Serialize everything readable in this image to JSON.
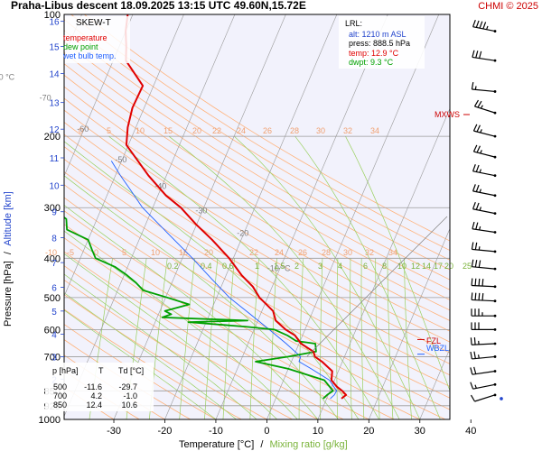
{
  "header": {
    "title": "Praha-Libus   descent   18.09.2025 13:15 UTC   49.60N,15.72E",
    "credit": "CHMI © 2025"
  },
  "legend": {
    "title": "SKEW-T",
    "items": [
      {
        "label": "temperature",
        "color": "#e00000"
      },
      {
        "label": "dew point",
        "color": "#00a000"
      },
      {
        "label": "wet bulb temp.",
        "color": "#2060ff"
      }
    ]
  },
  "lrl": {
    "title": "LRL:",
    "alt": "alt: 1210 m ASL",
    "press": "press: 888.5 hPa",
    "temp": "temp: 12.9 °C",
    "dwpt": "dwpt: 9.3 °C"
  },
  "markers": {
    "mxws": "MXWS",
    "fzl": "FZL",
    "wbzl": "WBZL"
  },
  "table": {
    "headers": [
      "p [hPa]",
      "T",
      "Td [°C]"
    ],
    "rows": [
      [
        "500",
        "-11.6",
        "-29.7"
      ],
      [
        "700",
        "4.2",
        "-1.0"
      ],
      [
        "850",
        "12.4",
        "10.6"
      ]
    ]
  },
  "axes": {
    "y_label_pressure": "Pressure [hPa]",
    "y_label_sep": "/",
    "y_label_altitude": "Altitude [km]",
    "x_label_temp": "Temperature [°C]",
    "x_label_sep": "/",
    "x_label_mix": "Mixing ratio [g/kg]"
  },
  "colors": {
    "temperature": "#e00000",
    "dewpoint": "#00a000",
    "wetbulb": "#2060ff",
    "isobar": "#9a9a9a",
    "isotherm": "#9a9a9a",
    "dry_adiabat": "#ffb27a",
    "moist_adiabat": "#9ad060",
    "mixing_ratio": "#9ad060",
    "altitude": "#2244cc",
    "credit": "#cc0000"
  },
  "chart_data": {
    "type": "skew-t",
    "pressure_ticks": [
      "100",
      "200",
      "300",
      "400",
      "500",
      "600",
      "700",
      "850",
      "925",
      "1000"
    ],
    "pressure_values": [
      100,
      200,
      300,
      400,
      500,
      600,
      700,
      850,
      925,
      1000
    ],
    "temp_ticks": [
      "-30",
      "-20",
      "-10",
      "0",
      "10",
      "20",
      "30",
      "40"
    ],
    "temp_values": [
      -30,
      -20,
      -10,
      0,
      10,
      20,
      30,
      40
    ],
    "altitude_ticks": [
      "16",
      "15",
      "14",
      "13",
      "12",
      "11",
      "10",
      "9",
      "8",
      "7",
      "6",
      "5",
      "4",
      "3",
      "2"
    ],
    "altitude_values_km": [
      16,
      15,
      14,
      13,
      12,
      11,
      10,
      9,
      8,
      7,
      6,
      5,
      4,
      3,
      2
    ],
    "isotherm_labels": [
      {
        "t": -80,
        "label": "-80 °C"
      },
      {
        "t": -70,
        "label": "-70"
      },
      {
        "t": -60,
        "label": "-60"
      },
      {
        "t": -50,
        "label": "-50"
      },
      {
        "t": -40,
        "label": "-40"
      },
      {
        "t": -30,
        "label": "-30"
      },
      {
        "t": -20,
        "label": "-20"
      },
      {
        "t": -10,
        "label": "-10 °C"
      }
    ],
    "theta_labels_200": [
      "0",
      "5",
      "10",
      "15",
      "20",
      "22",
      "24",
      "26",
      "28",
      "30",
      "32",
      "34"
    ],
    "theta_labels_400": [
      "-10",
      "-5",
      "0",
      "5",
      "10",
      "15",
      "20",
      "22",
      "24",
      "26",
      "28",
      "30",
      "32",
      "34"
    ],
    "mixing_labels": [
      "0.2",
      "0.4",
      "0.6",
      "1",
      "1.5",
      "2",
      "3",
      "4",
      "6",
      "8",
      "10",
      "12",
      "14",
      "17",
      "20",
      "25"
    ],
    "mixing_values": [
      0.2,
      0.4,
      0.6,
      1,
      1.5,
      2,
      3,
      4,
      6,
      8,
      10,
      12,
      14,
      17,
      20,
      25
    ],
    "temperature": {
      "p": [
        888.5,
        870,
        850,
        830,
        800,
        760,
        720,
        700,
        680,
        650,
        620,
        600,
        570,
        540,
        500,
        470,
        440,
        400,
        360,
        330,
        300,
        280,
        250,
        230,
        210,
        190,
        170,
        150,
        130,
        120,
        110,
        100
      ],
      "t": [
        12.9,
        13.5,
        12.4,
        11.0,
        9.4,
        8.8,
        6.0,
        4.2,
        3.5,
        0.4,
        -1.5,
        -3.8,
        -6.5,
        -7.8,
        -11.6,
        -13.8,
        -17.0,
        -20.8,
        -25.7,
        -30.1,
        -34.5,
        -38.4,
        -43.5,
        -46.8,
        -50.4,
        -51.6,
        -52.3,
        -52.1,
        -57.5,
        -58.6,
        -60.0,
        -61.0
      ]
    },
    "dewpoint": {
      "p": [
        888.5,
        870,
        850,
        800,
        750,
        720,
        700,
        680,
        650,
        640,
        620,
        600,
        590,
        575,
        570,
        560,
        550,
        540,
        520,
        500,
        480,
        460,
        440,
        420,
        400,
        380,
        360,
        340,
        320,
        300,
        270,
        250,
        220,
        200,
        180,
        160,
        140,
        120,
        110,
        100
      ],
      "t": [
        9.3,
        9.8,
        10.6,
        8.0,
        0.0,
        -7.0,
        -1.0,
        4.0,
        3.2,
        -0.8,
        -3.0,
        -6.0,
        -12.0,
        -23.5,
        -12.0,
        -29.0,
        -27.5,
        -29.0,
        -24.8,
        -29.7,
        -35.0,
        -37.0,
        -39.5,
        -42.5,
        -47.0,
        -48.5,
        -50.0,
        -55.0,
        -56.0,
        -60.0,
        -62.0,
        -64.0,
        -68.0,
        -72.0,
        -76.0,
        -80.0,
        -84.0,
        -86.0,
        -87.0,
        -88.0
      ]
    },
    "wetbulb": {
      "p": [
        888.5,
        870,
        850,
        800,
        750,
        720,
        700,
        650,
        600,
        550,
        500,
        450,
        400,
        350,
        300,
        270,
        250,
        230
      ],
      "t": [
        10.7,
        11.2,
        11.3,
        9.0,
        4.5,
        1.5,
        1.4,
        -2.5,
        -7.0,
        -12.0,
        -17.5,
        -22.5,
        -28.0,
        -34.5,
        -42.0,
        -46.0,
        -49.0,
        -52.0
      ]
    },
    "winds": [
      {
        "p": 110,
        "dir": 290,
        "speed": 45
      },
      {
        "p": 130,
        "dir": 285,
        "speed": 30
      },
      {
        "p": 155,
        "dir": 280,
        "speed": 15
      },
      {
        "p": 175,
        "dir": 300,
        "speed": 25
      },
      {
        "p": 200,
        "dir": 295,
        "speed": 25
      },
      {
        "p": 225,
        "dir": 295,
        "speed": 25
      },
      {
        "p": 250,
        "dir": 290,
        "speed": 25
      },
      {
        "p": 280,
        "dir": 290,
        "speed": 25
      },
      {
        "p": 310,
        "dir": 290,
        "speed": 25
      },
      {
        "p": 345,
        "dir": 285,
        "speed": 25
      },
      {
        "p": 385,
        "dir": 280,
        "speed": 25
      },
      {
        "p": 425,
        "dir": 280,
        "speed": 30
      },
      {
        "p": 470,
        "dir": 275,
        "speed": 40
      },
      {
        "p": 510,
        "dir": 275,
        "speed": 40
      },
      {
        "p": 555,
        "dir": 270,
        "speed": 35
      },
      {
        "p": 600,
        "dir": 270,
        "speed": 30
      },
      {
        "p": 650,
        "dir": 265,
        "speed": 25
      },
      {
        "p": 700,
        "dir": 260,
        "speed": 25
      },
      {
        "p": 760,
        "dir": 255,
        "speed": 20
      },
      {
        "p": 820,
        "dir": 250,
        "speed": 15
      },
      {
        "p": 870,
        "dir": 240,
        "speed": 10
      }
    ],
    "mxws_p": 178,
    "fzl_p": 635,
    "wbzl_p": 690
  }
}
